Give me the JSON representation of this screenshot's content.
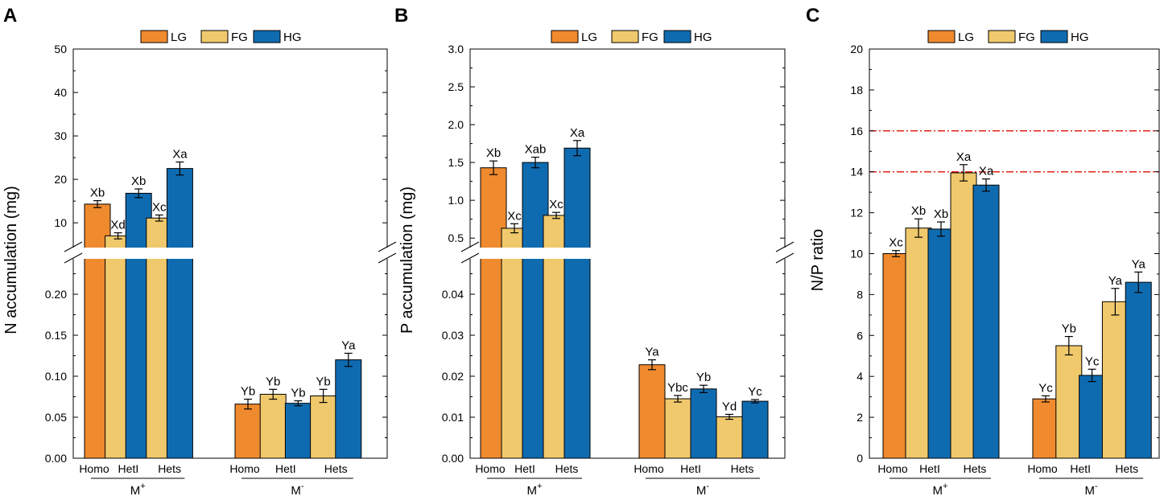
{
  "colors": {
    "LG": "#F08A2E",
    "FG": "#F0C96D",
    "HG": "#0F6BB0",
    "ref_line": "#E2231A"
  },
  "legend": [
    "LG",
    "FG",
    "HG"
  ],
  "x_groups": [
    "Homo",
    "HetI",
    "Hets"
  ],
  "treatments": [
    {
      "base": "M",
      "sup": "+"
    },
    {
      "base": "M",
      "sup": "-"
    }
  ],
  "chart_data": [
    {
      "panel": "A",
      "type": "bar",
      "ylabel": "N accumulation  (mg)",
      "broken_axis": true,
      "upper_range": [
        3,
        50
      ],
      "upper_ticks": [
        "10",
        "20",
        "30",
        "40",
        "50"
      ],
      "lower_range": [
        0,
        0.25
      ],
      "lower_ticks": [
        "0.00",
        "0.05",
        "0.10",
        "0.15",
        "0.20"
      ],
      "categories": [
        "Homo",
        "HetI",
        "Hets"
      ],
      "groups": [
        {
          "treatment": "M+",
          "segment": "upper",
          "bars": [
            {
              "category": "Homo",
              "series": "LG",
              "value": 14.3,
              "err": 0.8,
              "label": "Xb"
            },
            {
              "category": "HetI",
              "series": "FG",
              "value": 7.0,
              "err": 0.7,
              "label": "Xd"
            },
            {
              "category": "HetI",
              "series": "HG",
              "value": 16.8,
              "err": 1.0,
              "label": "Xb"
            },
            {
              "category": "Hets",
              "series": "FG",
              "value": 11.1,
              "err": 0.7,
              "label": "Xc"
            },
            {
              "category": "Hets",
              "series": "HG",
              "value": 22.5,
              "err": 1.5,
              "label": "Xa"
            }
          ]
        },
        {
          "treatment": "M-",
          "segment": "lower",
          "bars": [
            {
              "category": "Homo",
              "series": "LG",
              "value": 0.066,
              "err": 0.006,
              "label": "Yb"
            },
            {
              "category": "HetI",
              "series": "FG",
              "value": 0.078,
              "err": 0.006,
              "label": "Yb"
            },
            {
              "category": "HetI",
              "series": "HG",
              "value": 0.067,
              "err": 0.003,
              "label": "Yb"
            },
            {
              "category": "Hets",
              "series": "FG",
              "value": 0.076,
              "err": 0.008,
              "label": "Yb"
            },
            {
              "category": "Hets",
              "series": "HG",
              "value": 0.12,
              "err": 0.008,
              "label": "Ya"
            }
          ]
        }
      ]
    },
    {
      "panel": "B",
      "type": "bar",
      "ylabel": "P accumulation  (mg)",
      "broken_axis": true,
      "upper_range": [
        0.3,
        3.0
      ],
      "upper_ticks": [
        "0.5",
        "1.0",
        "1.5",
        "2.0",
        "2.5",
        "3.0"
      ],
      "lower_range": [
        0,
        0.05
      ],
      "lower_ticks": [
        "0.00",
        "0.01",
        "0.02",
        "0.03",
        "0.04"
      ],
      "categories": [
        "Homo",
        "HetI",
        "Hets"
      ],
      "groups": [
        {
          "treatment": "M+",
          "segment": "upper",
          "bars": [
            {
              "category": "Homo",
              "series": "LG",
              "value": 1.43,
              "err": 0.09,
              "label": "Xb"
            },
            {
              "category": "HetI",
              "series": "FG",
              "value": 0.63,
              "err": 0.06,
              "label": "Xc"
            },
            {
              "category": "HetI",
              "series": "HG",
              "value": 1.5,
              "err": 0.07,
              "label": "Xab"
            },
            {
              "category": "Hets",
              "series": "FG",
              "value": 0.8,
              "err": 0.04,
              "label": "Xc"
            },
            {
              "category": "Hets",
              "series": "HG",
              "value": 1.69,
              "err": 0.1,
              "label": "Xa"
            }
          ]
        },
        {
          "treatment": "M-",
          "segment": "lower",
          "bars": [
            {
              "category": "Homo",
              "series": "LG",
              "value": 0.0228,
              "err": 0.0012,
              "label": "Ya"
            },
            {
              "category": "HetI",
              "series": "FG",
              "value": 0.0145,
              "err": 0.0008,
              "label": "Ybc"
            },
            {
              "category": "HetI",
              "series": "HG",
              "value": 0.0169,
              "err": 0.0009,
              "label": "Yb"
            },
            {
              "category": "Hets",
              "series": "FG",
              "value": 0.0101,
              "err": 0.0006,
              "label": "Yd"
            },
            {
              "category": "Hets",
              "series": "HG",
              "value": 0.0139,
              "err": 0.0004,
              "label": "Yc"
            }
          ]
        }
      ]
    },
    {
      "panel": "C",
      "type": "bar",
      "ylabel": "N/P ratio",
      "broken_axis": false,
      "range": [
        0,
        20
      ],
      "ticks": [
        "0",
        "2",
        "4",
        "6",
        "8",
        "10",
        "12",
        "14",
        "16",
        "18",
        "20"
      ],
      "reference_lines": [
        14,
        16
      ],
      "categories": [
        "Homo",
        "HetI",
        "Hets"
      ],
      "groups": [
        {
          "treatment": "M+",
          "bars": [
            {
              "category": "Homo",
              "series": "LG",
              "value": 10.0,
              "err": 0.15,
              "label": "Xc"
            },
            {
              "category": "HetI",
              "series": "FG",
              "value": 11.25,
              "err": 0.45,
              "label": "Xb"
            },
            {
              "category": "HetI",
              "series": "HG",
              "value": 11.2,
              "err": 0.35,
              "label": "Xb"
            },
            {
              "category": "Hets",
              "series": "FG",
              "value": 13.95,
              "err": 0.4,
              "label": "Xa"
            },
            {
              "category": "Hets",
              "series": "HG",
              "value": 13.35,
              "err": 0.3,
              "label": "Xa"
            }
          ]
        },
        {
          "treatment": "M-",
          "bars": [
            {
              "category": "Homo",
              "series": "LG",
              "value": 2.9,
              "err": 0.15,
              "label": "Yc"
            },
            {
              "category": "HetI",
              "series": "FG",
              "value": 5.5,
              "err": 0.45,
              "label": "Yb"
            },
            {
              "category": "HetI",
              "series": "HG",
              "value": 4.05,
              "err": 0.3,
              "label": "Yc"
            },
            {
              "category": "Hets",
              "series": "FG",
              "value": 7.65,
              "err": 0.65,
              "label": "Ya"
            },
            {
              "category": "Hets",
              "series": "HG",
              "value": 8.6,
              "err": 0.5,
              "label": "Ya"
            }
          ]
        }
      ]
    }
  ]
}
